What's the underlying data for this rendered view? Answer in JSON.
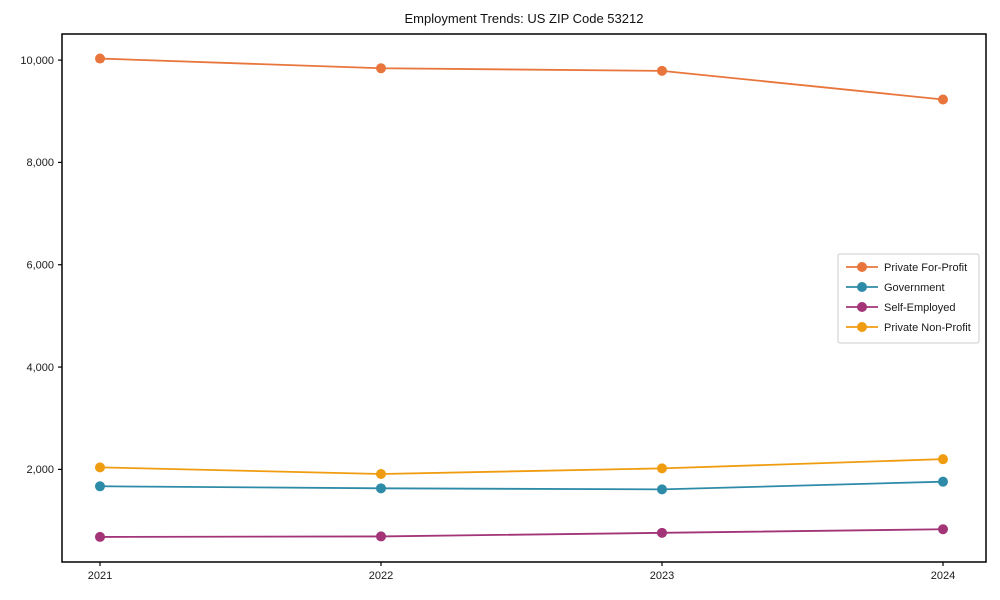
{
  "chart_data": {
    "type": "line",
    "title": "Employment Trends: US ZIP Code 53212",
    "xlabel": "",
    "ylabel": "",
    "x": [
      2021,
      2022,
      2023,
      2024
    ],
    "x_tick_labels": [
      "2021",
      "2022",
      "2023",
      "2024"
    ],
    "series": [
      {
        "name": "Private For-Profit",
        "color": "#E8763C",
        "marker": "o",
        "values": [
          10030,
          9840,
          9790,
          9230
        ]
      },
      {
        "name": "Government",
        "color": "#2E8BA8",
        "marker": "o",
        "values": [
          1670,
          1630,
          1610,
          1760
        ]
      },
      {
        "name": "Self-Employed",
        "color": "#A23477",
        "marker": "o",
        "values": [
          680,
          690,
          760,
          830
        ]
      },
      {
        "name": "Private Non-Profit",
        "color": "#F09C10",
        "marker": "o",
        "values": [
          2040,
          1910,
          2020,
          2200
        ]
      }
    ],
    "y_ticks": [
      2000,
      4000,
      6000,
      8000,
      10000
    ],
    "y_tick_labels": [
      "2,000",
      "4,000",
      "6,000",
      "8,000",
      "10,000"
    ],
    "ylim": [
      190,
      10510
    ],
    "grid": false,
    "legend_position": "center right",
    "axis_color": "#000000",
    "tick_label_color": "#1a1a1a",
    "legend_border_color": "#cccccc",
    "background_color": "#ffffff"
  }
}
